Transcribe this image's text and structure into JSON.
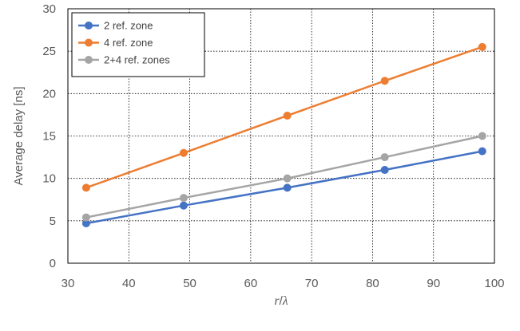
{
  "chart_data": {
    "type": "line",
    "title": "",
    "xlabel": "r/λ",
    "xlabel_parts": {
      "var": "r",
      "sep": "/",
      "lambda": "λ"
    },
    "ylabel": "Average delay [ns]",
    "xlim": [
      30,
      100
    ],
    "ylim": [
      0,
      30
    ],
    "xticks": [
      30,
      40,
      50,
      60,
      70,
      80,
      90,
      100
    ],
    "yticks": [
      0,
      5,
      10,
      15,
      20,
      25,
      30
    ],
    "grid": true,
    "legend_position": "top-left",
    "series": [
      {
        "name": "2 ref. zone",
        "color": "#4472C4",
        "x": [
          33,
          49,
          66,
          82,
          98
        ],
        "y": [
          4.7,
          6.8,
          8.9,
          11.0,
          13.2
        ]
      },
      {
        "name": "4 ref. zone",
        "color": "#ED7D31",
        "x": [
          33,
          49,
          66,
          82,
          98
        ],
        "y": [
          8.9,
          13.0,
          17.4,
          21.5,
          25.5
        ]
      },
      {
        "name": "2+4 ref. zones",
        "color": "#A5A5A5",
        "x": [
          33,
          49,
          66,
          82,
          98
        ],
        "y": [
          5.4,
          7.7,
          10.0,
          12.5,
          15.0
        ]
      }
    ]
  }
}
